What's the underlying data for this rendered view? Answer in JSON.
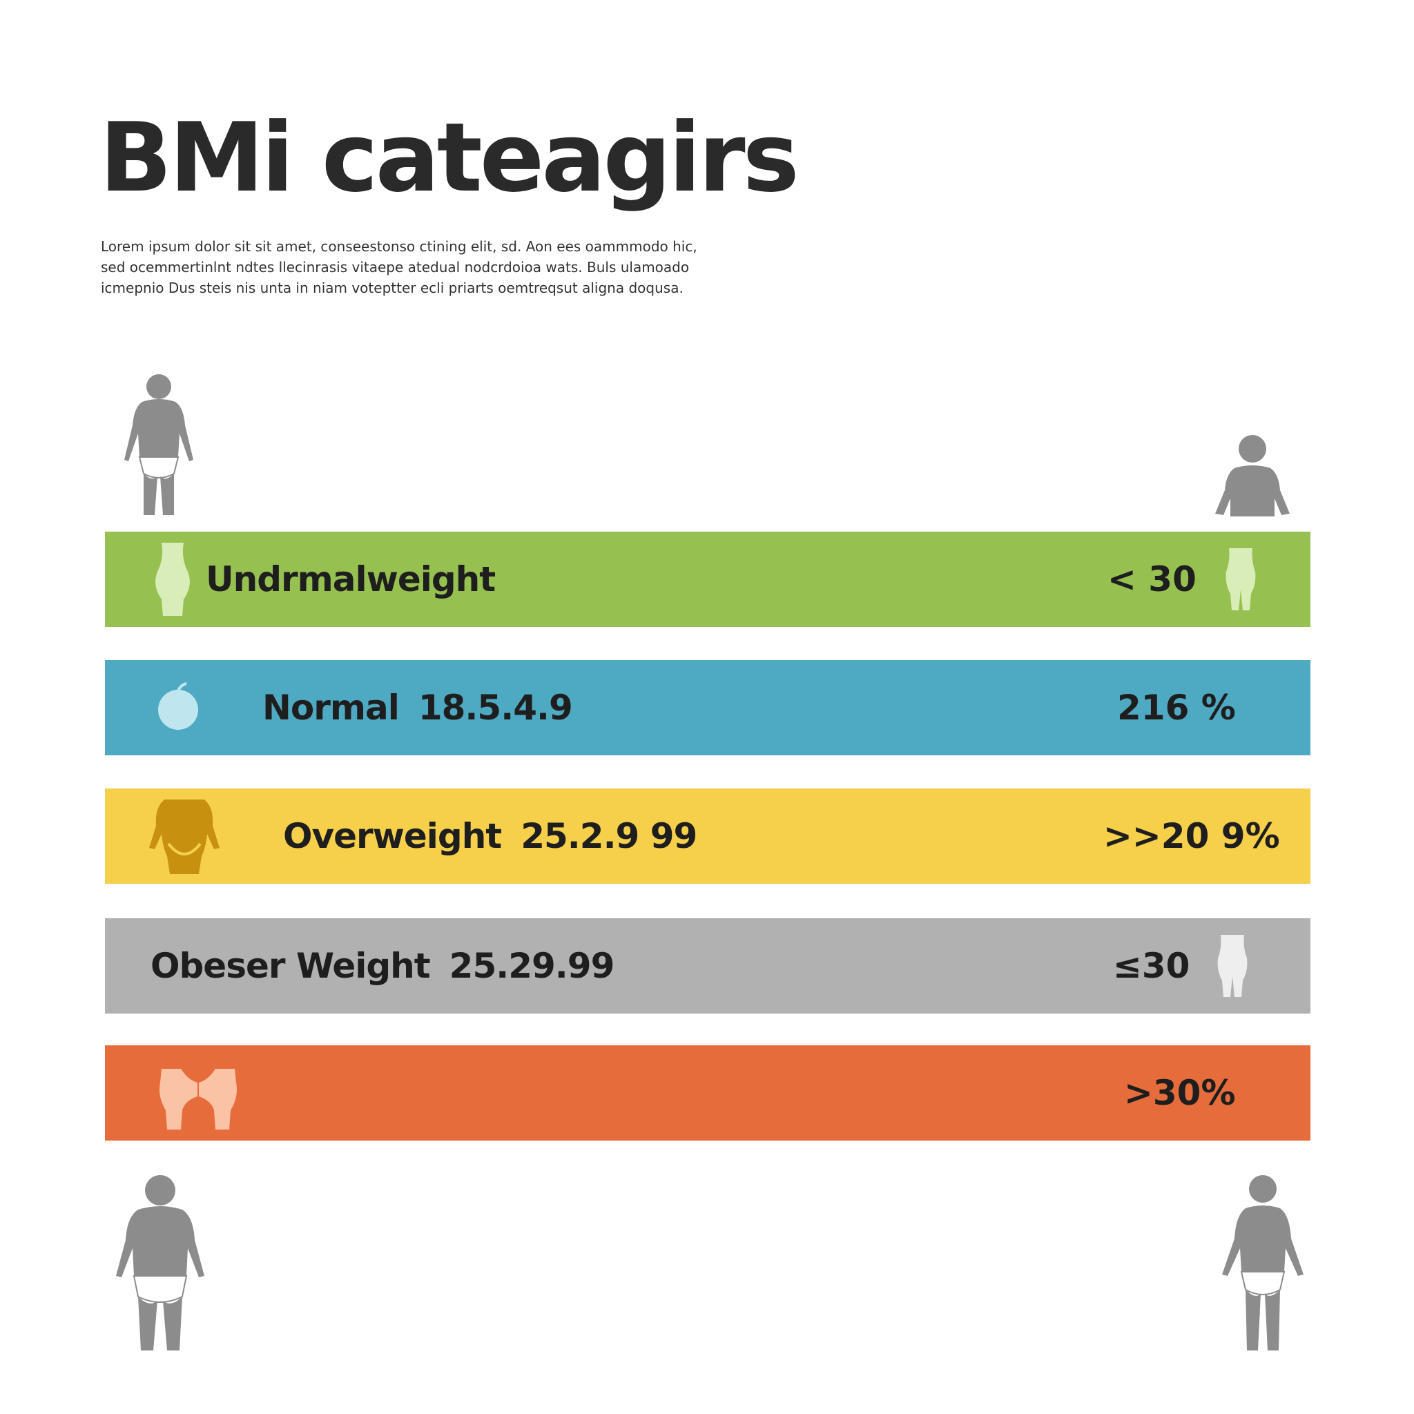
{
  "header": {
    "title": "BMi cateagirs",
    "description": "Lorem ipsum dolor sit sit amet, conseestonso ctining elit, sd. Aon ees oammmodo hic, sed ocemmertinlnt ndtes llecinrasis vitaepe atedual nodcrdoioa wats. Buls ulamoado icmepnio Dus steis nis unta in niam voteptter ecli priarts oemtreqsut aligna doqusa."
  },
  "colors": {
    "text": "#2a2a2a",
    "figure": "#8c8c8c",
    "green": "#96c150",
    "blue": "#4ea9c2",
    "yellow": "#f6d04b",
    "gray": "#b1b1b1",
    "orange": "#e66d3b"
  },
  "figures": [
    {
      "position": "top-left",
      "icon": "person-silhouette-icon"
    },
    {
      "position": "top-right",
      "icon": "person-bust-icon"
    },
    {
      "position": "bottom-left",
      "icon": "person-silhouette-icon"
    },
    {
      "position": "bottom-right",
      "icon": "person-silhouette-icon"
    }
  ],
  "bands": [
    {
      "label": "Undrmalweight",
      "range": "",
      "value": "< 30",
      "color": "#96c150",
      "icon": "torso-icon",
      "right_icon": "hips-icon"
    },
    {
      "label": "Normal",
      "range": "18.5.4.9",
      "value": "216  %",
      "color": "#4ea9c2",
      "icon": "apple-icon",
      "right_icon": ""
    },
    {
      "label": "Overweight",
      "range": "25.2.9 99",
      "value": ">>20 9%",
      "color": "#f6d04b",
      "icon": "torso-icon",
      "right_icon": ""
    },
    {
      "label": "Obeser Weight",
      "range": "25.29.99",
      "value": "≤30",
      "color": "#b1b1b1",
      "icon": "",
      "right_icon": "hips-icon"
    },
    {
      "label": "",
      "range": "",
      "value": ">30%",
      "color": "#e66d3b",
      "icon": "hips-pair-icon",
      "right_icon": ""
    }
  ]
}
